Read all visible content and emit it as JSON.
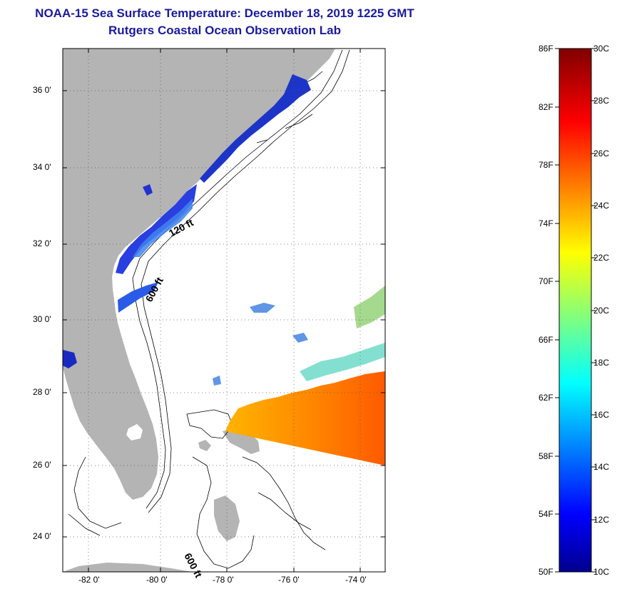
{
  "title": {
    "line1": "NOAA-15 Sea Surface Temperature:  December 18, 2019 1225 GMT",
    "line2": "Rutgers Coastal Ocean Observation Lab"
  },
  "map": {
    "lat_labels": [
      "36 0'",
      "34 0'",
      "32 0'",
      "30 0'",
      "28 0'",
      "26 0'",
      "24 0'"
    ],
    "lon_labels": [
      "-82 0'",
      "-80 0'",
      "-78 0'",
      "-76 0'",
      "-74 0'"
    ],
    "depth_labels": [
      "120 ft",
      "600 ft",
      "600 ft"
    ],
    "colors": {
      "land": "#b4b4b4",
      "no_data": "#ffffff",
      "contour": "#000000"
    }
  },
  "colorbar": {
    "fahrenheit_labels": [
      "86F",
      "82F",
      "78F",
      "74F",
      "70F",
      "66F",
      "62F",
      "58F",
      "54F",
      "50F"
    ],
    "celsius_labels": [
      "30C",
      "28C",
      "26C",
      "24C",
      "22C",
      "20C",
      "18C",
      "16C",
      "14C",
      "12C",
      "10C"
    ],
    "range_c": [
      10,
      30
    ],
    "range_f": [
      50,
      86
    ]
  }
}
